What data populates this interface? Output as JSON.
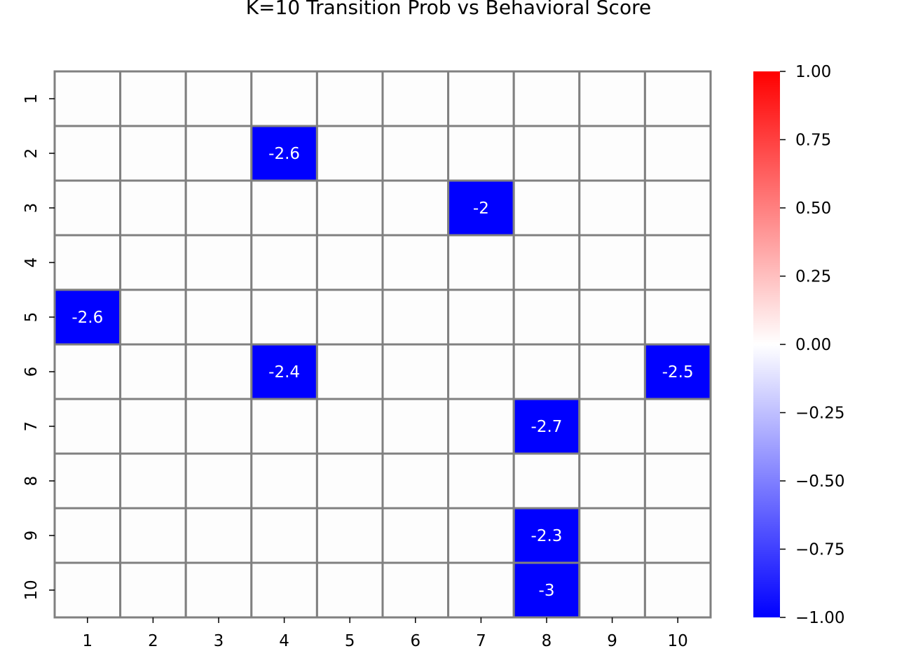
{
  "chart_data": {
    "type": "heatmap",
    "title": "K=10 Transition Prob vs Behavioral Score",
    "xlabel": "",
    "ylabel": "",
    "x_categories": [
      "1",
      "2",
      "3",
      "4",
      "5",
      "6",
      "7",
      "8",
      "9",
      "10"
    ],
    "y_categories": [
      "1",
      "2",
      "3",
      "4",
      "5",
      "6",
      "7",
      "8",
      "9",
      "10"
    ],
    "cells": [
      {
        "row": "2",
        "col": "4",
        "value": -2.6,
        "label": "-2.6"
      },
      {
        "row": "3",
        "col": "7",
        "value": -2.0,
        "label": "-2"
      },
      {
        "row": "5",
        "col": "1",
        "value": -2.6,
        "label": "-2.6"
      },
      {
        "row": "6",
        "col": "4",
        "value": -2.4,
        "label": "-2.4"
      },
      {
        "row": "6",
        "col": "10",
        "value": -2.5,
        "label": "-2.5"
      },
      {
        "row": "7",
        "col": "8",
        "value": -2.7,
        "label": "-2.7"
      },
      {
        "row": "9",
        "col": "8",
        "value": -2.3,
        "label": "-2.3"
      },
      {
        "row": "10",
        "col": "8",
        "value": -3.0,
        "label": "-3"
      }
    ],
    "empty_cell_color": "#fdfdfd",
    "grid_line_color": "#808080",
    "colormap": "bwr",
    "colormap_colors": {
      "low": "#0000ff",
      "mid": "#ffffff",
      "high": "#ff0000"
    },
    "colorbar": {
      "vmin": -1.0,
      "vmax": 1.0,
      "tick_labels": [
        "1.00",
        "0.75",
        "0.50",
        "0.25",
        "0.00",
        "−0.25",
        "−0.50",
        "−0.75",
        "−1.00"
      ],
      "tick_values": [
        1.0,
        0.75,
        0.5,
        0.25,
        0.0,
        -0.25,
        -0.5,
        -0.75,
        -1.0
      ]
    }
  }
}
